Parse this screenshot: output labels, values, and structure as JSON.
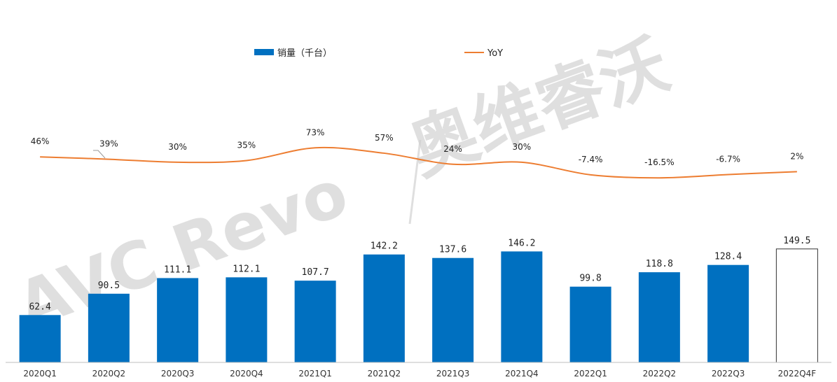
{
  "chart_data": {
    "type": "bar",
    "categories": [
      "2020Q1",
      "2020Q2",
      "2020Q3",
      "2020Q4",
      "2021Q1",
      "2021Q2",
      "2021Q3",
      "2021Q4",
      "2022Q1",
      "2022Q2",
      "2022Q3",
      "2022Q4F"
    ],
    "series": [
      {
        "name": "销量（千台）",
        "type": "bar",
        "values": [
          62.4,
          90.5,
          111.1,
          112.1,
          107.7,
          142.2,
          137.6,
          146.2,
          99.8,
          118.8,
          128.4,
          149.5
        ],
        "value_labels": [
          "62.4",
          "90.5",
          "111.1",
          "112.1",
          "107.7",
          "142.2",
          "137.6",
          "146.2",
          "99.8",
          "118.8",
          "128.4",
          "149.5"
        ],
        "forecast_index": 11
      },
      {
        "name": "YoY",
        "type": "line",
        "values": [
          46,
          39,
          30,
          35,
          73,
          57,
          24,
          30,
          -7.4,
          -16.5,
          -6.7,
          2
        ],
        "value_labels": [
          "46%",
          "39%",
          "30%",
          "35%",
          "73%",
          "57%",
          "24%",
          "30%",
          "-7.4%",
          "-16.5%",
          "-6.7%",
          "2%"
        ]
      }
    ],
    "legend": {
      "position": "top-center",
      "items": [
        "销量（千台）",
        "YoY"
      ]
    },
    "colors": {
      "bar": "#0070C0",
      "forecast_fill": "#ffffff",
      "forecast_stroke": "#333333",
      "line": "#ED7D31"
    },
    "watermark": "AVC Revo|奥维睿沃",
    "grid": false
  }
}
